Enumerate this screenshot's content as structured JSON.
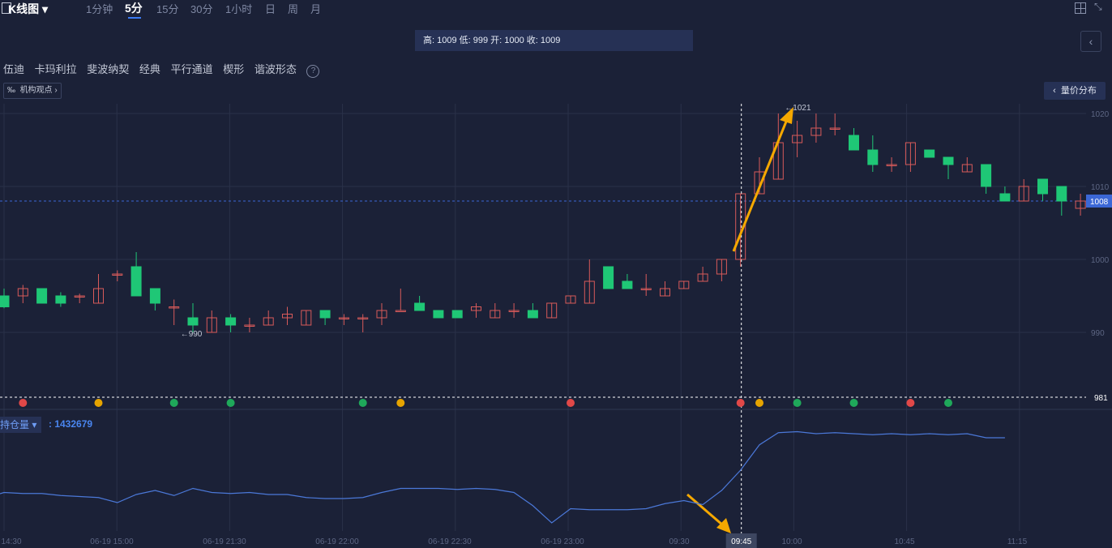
{
  "header": {
    "chart_type_label": "K线图",
    "timeframes": [
      "1分钟",
      "5分",
      "15分",
      "30分",
      "1小时",
      "日",
      "周",
      "月"
    ],
    "active_timeframe": "5分"
  },
  "ohlc_text": "高: 1009 低: 999 开: 1000 收: 1009",
  "tools": [
    "伍迪",
    "卡玛利拉",
    "斐波纳契",
    "经典",
    "平行通道",
    "楔形",
    "谐波形态"
  ],
  "view_button": "机构观点",
  "volume_profile_button": "量价分布",
  "indicator": {
    "name": "持仓量",
    "value": ": 1432679"
  },
  "colors": {
    "bg": "#1b2137",
    "up": "#d85a5a",
    "down": "#1fc776",
    "line": "#4b78d8",
    "arrow": "#f5a800",
    "accent": "#3b67d6"
  },
  "chart_data": {
    "type": "candlestick",
    "ylim": [
      980,
      1021.5
    ],
    "y_ticks": [
      "1020",
      "1010",
      "1000",
      "990"
    ],
    "x_ticks": [
      "14:30",
      "06-19 15:00",
      "06-19 21:30",
      "06-19 22:00",
      "06-19 22:30",
      "06-19 23:00",
      "09:30",
      "10:00",
      "10:45",
      "11:15"
    ],
    "crosshair_time": "09:45",
    "last_price_label": "1008",
    "last_price": 1008,
    "crosshair_price_label": "981",
    "crosshair_price": 981,
    "annotations": [
      {
        "text": "←1021",
        "candle": 41,
        "price": 1021
      },
      {
        "text": "←990",
        "candle": 9,
        "price": 990
      }
    ],
    "candles": [
      [
        995,
        993.5,
        996,
        993.3
      ],
      [
        995,
        996,
        996.5,
        994
      ],
      [
        996,
        994,
        996,
        994
      ],
      [
        995,
        994,
        995.5,
        993.5
      ],
      [
        995,
        995,
        995.3,
        994
      ],
      [
        994,
        996,
        998,
        994
      ],
      [
        998,
        998,
        998.5,
        997
      ],
      [
        999,
        995,
        1001,
        995
      ],
      [
        996,
        994,
        996,
        993
      ],
      [
        993.5,
        993.5,
        994.5,
        991
      ],
      [
        992,
        991,
        994,
        990
      ],
      [
        990,
        992,
        993,
        990
      ],
      [
        992,
        991,
        992.5,
        990
      ],
      [
        991,
        991,
        992,
        990
      ],
      [
        991,
        992,
        993,
        991
      ],
      [
        992,
        992.5,
        993.5,
        991
      ],
      [
        991,
        993,
        993,
        991
      ],
      [
        993,
        992,
        993,
        991
      ],
      [
        992,
        992,
        992.5,
        991
      ],
      [
        992,
        992,
        992.5,
        990
      ],
      [
        992,
        993,
        994,
        991
      ],
      [
        993,
        993,
        996,
        993
      ],
      [
        994,
        993,
        995,
        993
      ],
      [
        993,
        992,
        993,
        992
      ],
      [
        993,
        992,
        993,
        992
      ],
      [
        993,
        993.5,
        994,
        992
      ],
      [
        992,
        993,
        994,
        992
      ],
      [
        993,
        993,
        994,
        992
      ],
      [
        993,
        992,
        994,
        992
      ],
      [
        992,
        994,
        994,
        992
      ],
      [
        994,
        995,
        995,
        994
      ],
      [
        994,
        997,
        1000,
        994
      ],
      [
        999,
        996,
        999,
        996
      ],
      [
        997,
        996,
        998,
        996
      ],
      [
        996,
        996,
        998,
        995
      ],
      [
        995,
        996,
        997,
        995
      ],
      [
        996,
        997,
        997,
        996
      ],
      [
        997,
        998,
        999,
        997
      ],
      [
        998,
        1000,
        1000,
        997
      ],
      [
        1000,
        1009,
        1009,
        999
      ],
      [
        1009,
        1012,
        1014,
        1009
      ],
      [
        1011,
        1016,
        1020,
        1011
      ],
      [
        1016,
        1017,
        1019,
        1014
      ],
      [
        1017,
        1018,
        1020,
        1016
      ],
      [
        1018,
        1018,
        1020,
        1017
      ],
      [
        1017,
        1015,
        1018,
        1015
      ],
      [
        1015,
        1013,
        1017,
        1012
      ],
      [
        1013,
        1013,
        1014,
        1012
      ],
      [
        1013,
        1016,
        1016,
        1012
      ],
      [
        1015,
        1014,
        1015,
        1014
      ],
      [
        1014,
        1013,
        1014,
        1011
      ],
      [
        1012,
        1013,
        1014,
        1012
      ],
      [
        1013,
        1010,
        1013,
        1009
      ],
      [
        1009,
        1008,
        1010,
        1008
      ],
      [
        1008,
        1010,
        1011,
        1008
      ],
      [
        1011,
        1009,
        1011,
        1008
      ],
      [
        1010,
        1008,
        1010,
        1006
      ],
      [
        1007,
        1008,
        1009,
        1006
      ]
    ],
    "signals": [
      {
        "candle": 1,
        "kind": "up-red"
      },
      {
        "candle": 5,
        "kind": "gold-s"
      },
      {
        "candle": 9,
        "kind": "down-green"
      },
      {
        "candle": 12,
        "kind": "down-green"
      },
      {
        "candle": 19,
        "kind": "down-green"
      },
      {
        "candle": 21,
        "kind": "star"
      },
      {
        "candle": 30,
        "kind": "up-red"
      },
      {
        "candle": 39,
        "kind": "up-red"
      },
      {
        "candle": 40,
        "kind": "gold-s"
      },
      {
        "candle": 42,
        "kind": "down-green"
      },
      {
        "candle": 45,
        "kind": "down-green"
      },
      {
        "candle": 48,
        "kind": "red-arrow"
      },
      {
        "candle": 50,
        "kind": "green-arrow"
      }
    ],
    "open_interest": {
      "x_idx": [
        0,
        1,
        2,
        3,
        4,
        5,
        6,
        7,
        8,
        9,
        10,
        11,
        12,
        13,
        14,
        15,
        16,
        17,
        18,
        19,
        20,
        21,
        22,
        23,
        24,
        25,
        26,
        27,
        28,
        29,
        30,
        31,
        32,
        33,
        34,
        35,
        36,
        37,
        38,
        39,
        40,
        41,
        42,
        43,
        44,
        45,
        46,
        47,
        48,
        49,
        50,
        51,
        52,
        53
      ],
      "values": [
        0.38,
        0.37,
        0.37,
        0.35,
        0.34,
        0.33,
        0.28,
        0.36,
        0.4,
        0.35,
        0.42,
        0.38,
        0.37,
        0.38,
        0.36,
        0.36,
        0.33,
        0.32,
        0.32,
        0.33,
        0.38,
        0.42,
        0.42,
        0.42,
        0.41,
        0.42,
        0.41,
        0.38,
        0.25,
        0.08,
        0.22,
        0.21,
        0.21,
        0.21,
        0.22,
        0.27,
        0.3,
        0.26,
        0.4,
        0.6,
        0.85,
        0.97,
        0.98,
        0.96,
        0.97,
        0.96,
        0.95,
        0.96,
        0.95,
        0.96,
        0.95,
        0.96,
        0.92,
        0.92
      ]
    }
  }
}
